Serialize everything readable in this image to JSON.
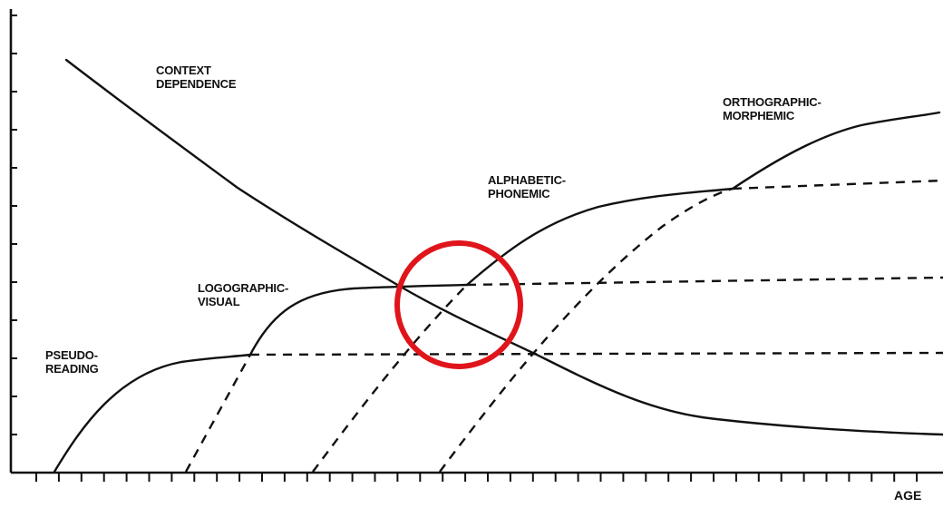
{
  "labels": {
    "context_line1": "CONTEXT",
    "context_line2": "DEPENDENCE",
    "ortho_line1": "ORTHOGRAPHIC-",
    "ortho_line2": "MORPHEMIC",
    "alpha_line1": "ALPHABETIC-",
    "alpha_line2": "PHONEMIC",
    "logo_line1": "LOGOGRAPHIC-",
    "logo_line2": "VISUAL",
    "pseudo_line1": "PSEUDO-",
    "pseudo_line2": "READING"
  },
  "axis": {
    "x_label": "AGE"
  },
  "colors": {
    "ink": "#111111",
    "highlight": "#e0151b"
  }
}
